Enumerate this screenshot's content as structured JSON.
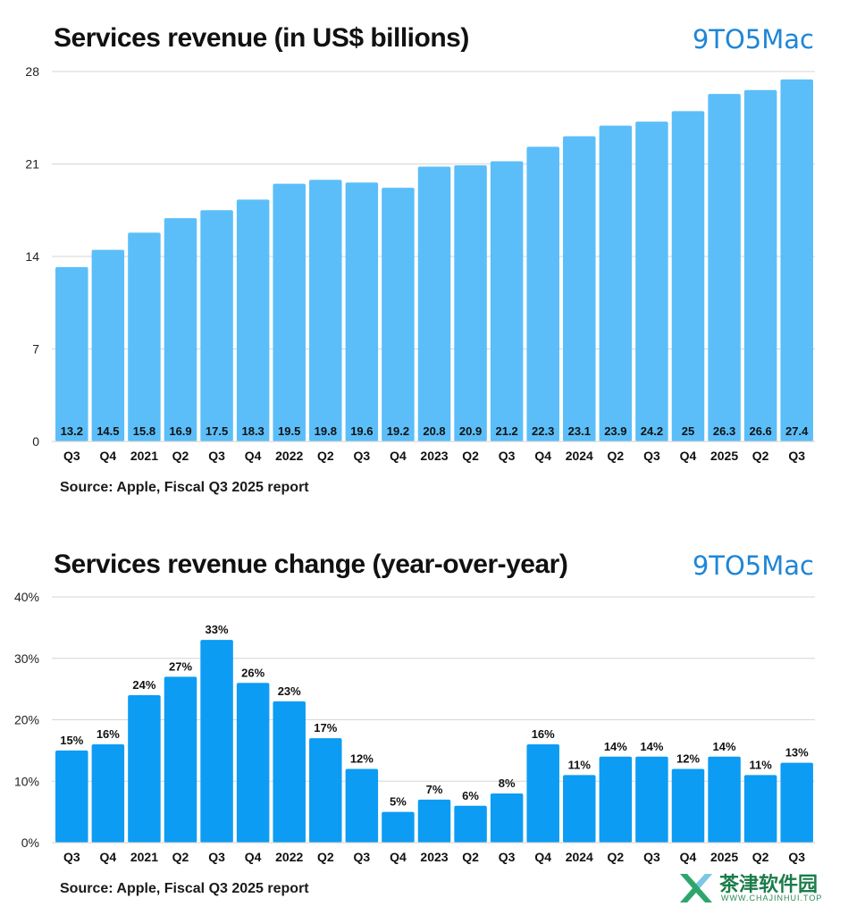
{
  "colors": {
    "revenue_bar": "#5bbef9",
    "change_bar": "#0d9cf3",
    "logo": "#1f86d6",
    "grid": "#d6d6d6"
  },
  "logo_text": "9TO5Mac",
  "watermark": {
    "text": "茶津软件园",
    "sub": "WWW.CHAJINHUI.TOP",
    "icon": "x-logo-icon"
  },
  "chart_data": [
    {
      "type": "bar",
      "title": "Services revenue (in US$ billions)",
      "source": "Source: Apple, Fiscal Q3 2025 report",
      "categories": [
        "Q3",
        "Q4",
        "2021",
        "Q2",
        "Q3",
        "Q4",
        "2022",
        "Q2",
        "Q3",
        "Q4",
        "2023",
        "Q2",
        "Q3",
        "Q4",
        "2024",
        "Q2",
        "Q3",
        "Q4",
        "2025",
        "Q2",
        "Q3"
      ],
      "values": [
        13.2,
        14.5,
        15.8,
        16.9,
        17.5,
        18.3,
        19.5,
        19.8,
        19.6,
        19.2,
        20.8,
        20.9,
        21.2,
        22.3,
        23.1,
        23.9,
        24.2,
        25,
        26.3,
        26.6,
        27.4
      ],
      "value_labels": [
        "13.2",
        "14.5",
        "15.8",
        "16.9",
        "17.5",
        "18.3",
        "19.5",
        "19.8",
        "19.6",
        "19.2",
        "20.8",
        "20.9",
        "21.2",
        "22.3",
        "23.1",
        "23.9",
        "24.2",
        "25",
        "26.3",
        "26.6",
        "27.4"
      ],
      "ylim": [
        0,
        28
      ],
      "yticks": [
        0,
        7,
        14,
        21,
        28
      ],
      "ytick_labels": [
        "0",
        "7",
        "14",
        "21",
        "28"
      ],
      "grid": true,
      "label_position": "inside-bottom"
    },
    {
      "type": "bar",
      "title": "Services revenue change (year-over-year)",
      "source": "Source: Apple, Fiscal Q3 2025 report",
      "categories": [
        "Q3",
        "Q4",
        "2021",
        "Q2",
        "Q3",
        "Q4",
        "2022",
        "Q2",
        "Q3",
        "Q4",
        "2023",
        "Q2",
        "Q3",
        "Q4",
        "2024",
        "Q2",
        "Q3",
        "Q4",
        "2025",
        "Q2",
        "Q3"
      ],
      "values": [
        15,
        16,
        24,
        27,
        33,
        26,
        23,
        17,
        12,
        5,
        7,
        6,
        8,
        16,
        11,
        14,
        14,
        12,
        14,
        11,
        13
      ],
      "value_labels": [
        "15%",
        "16%",
        "24%",
        "27%",
        "33%",
        "26%",
        "23%",
        "17%",
        "12%",
        "5%",
        "7%",
        "6%",
        "8%",
        "16%",
        "11%",
        "14%",
        "14%",
        "12%",
        "14%",
        "11%",
        "13%"
      ],
      "ylim": [
        0,
        40
      ],
      "yticks": [
        0,
        10,
        20,
        30,
        40
      ],
      "ytick_labels": [
        "0%",
        "10%",
        "20%",
        "30%",
        "40%"
      ],
      "grid": true,
      "label_position": "above"
    }
  ]
}
